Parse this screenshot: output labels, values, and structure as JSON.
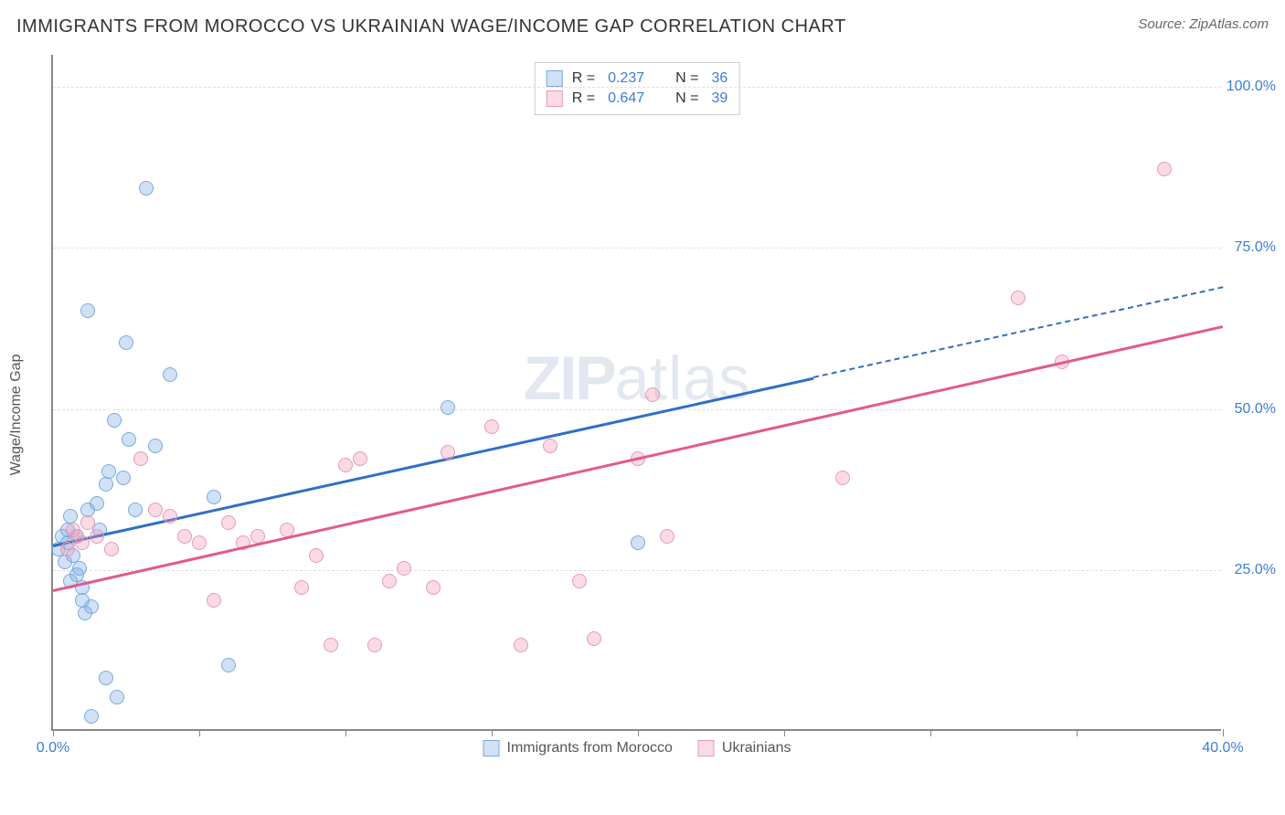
{
  "title": "IMMIGRANTS FROM MOROCCO VS UKRAINIAN WAGE/INCOME GAP CORRELATION CHART",
  "source_label": "Source: ",
  "source_value": "ZipAtlas.com",
  "y_axis_label": "Wage/Income Gap",
  "watermark_bold": "ZIP",
  "watermark_light": "atlas",
  "chart": {
    "type": "scatter",
    "background_color": "#ffffff",
    "grid_color": "#e0e0e0",
    "axis_color": "#888888",
    "tick_label_color": "#3b7dd8",
    "label_fontsize": 16,
    "title_fontsize": 20,
    "xlim": [
      0,
      40
    ],
    "ylim": [
      0,
      105
    ],
    "x_ticks": [
      0,
      10,
      20,
      30,
      40
    ],
    "x_tick_labels": [
      "0.0%",
      "",
      "",
      "",
      "40.0%"
    ],
    "x_tick_minor": [
      5,
      15,
      25,
      35
    ],
    "y_ticks": [
      25,
      50,
      75,
      100
    ],
    "y_tick_labels": [
      "25.0%",
      "50.0%",
      "75.0%",
      "100.0%"
    ],
    "marker_radius": 8,
    "marker_stroke_width": 1.5,
    "series": [
      {
        "key": "morocco",
        "label": "Immigrants from Morocco",
        "fill": "rgba(120,170,230,0.35)",
        "stroke": "#7aa9e0",
        "r_label": "R = ",
        "r_value": "0.237",
        "n_label": "N = ",
        "n_value": "36",
        "trend": {
          "x1": 0,
          "y1": 29,
          "x2": 26,
          "y2": 55,
          "color": "#2f6fc4",
          "width": 3,
          "dash": false
        },
        "trend_ext": {
          "x1": 26,
          "y1": 55,
          "x2": 40,
          "y2": 69,
          "color": "#2f6fc4",
          "width": 2,
          "dash": true
        },
        "points": [
          [
            0.2,
            28
          ],
          [
            0.3,
            30
          ],
          [
            0.4,
            26
          ],
          [
            0.5,
            29
          ],
          [
            0.5,
            31
          ],
          [
            0.6,
            23
          ],
          [
            0.6,
            33
          ],
          [
            0.7,
            27
          ],
          [
            0.8,
            30
          ],
          [
            0.8,
            24
          ],
          [
            0.9,
            25
          ],
          [
            1.0,
            20
          ],
          [
            1.0,
            22
          ],
          [
            1.1,
            18
          ],
          [
            1.2,
            65
          ],
          [
            1.2,
            34
          ],
          [
            1.3,
            19
          ],
          [
            1.5,
            35
          ],
          [
            1.6,
            31
          ],
          [
            1.8,
            38
          ],
          [
            1.9,
            40
          ],
          [
            2.1,
            48
          ],
          [
            2.4,
            39
          ],
          [
            2.5,
            60
          ],
          [
            2.6,
            45
          ],
          [
            2.8,
            34
          ],
          [
            3.2,
            84
          ],
          [
            3.5,
            44
          ],
          [
            4.0,
            55
          ],
          [
            5.5,
            36
          ],
          [
            6.0,
            10
          ],
          [
            1.8,
            8
          ],
          [
            2.2,
            5
          ],
          [
            1.3,
            2
          ],
          [
            13.5,
            50
          ],
          [
            20.0,
            29
          ]
        ]
      },
      {
        "key": "ukrainians",
        "label": "Ukrainians",
        "fill": "rgba(240,150,180,0.35)",
        "stroke": "#e89ab5",
        "r_label": "R = ",
        "r_value": "0.647",
        "n_label": "N = ",
        "n_value": "39",
        "trend": {
          "x1": 0,
          "y1": 22,
          "x2": 40,
          "y2": 63,
          "color": "#e35a87",
          "width": 3,
          "dash": false
        },
        "points": [
          [
            0.5,
            28
          ],
          [
            0.7,
            31
          ],
          [
            0.8,
            30
          ],
          [
            1.0,
            29
          ],
          [
            1.2,
            32
          ],
          [
            1.5,
            30
          ],
          [
            2.0,
            28
          ],
          [
            3.0,
            42
          ],
          [
            3.5,
            34
          ],
          [
            4.0,
            33
          ],
          [
            4.5,
            30
          ],
          [
            5.0,
            29
          ],
          [
            5.5,
            20
          ],
          [
            6.0,
            32
          ],
          [
            6.5,
            29
          ],
          [
            7.0,
            30
          ],
          [
            8.0,
            31
          ],
          [
            8.5,
            22
          ],
          [
            9.0,
            27
          ],
          [
            9.5,
            13
          ],
          [
            10.0,
            41
          ],
          [
            10.5,
            42
          ],
          [
            11.0,
            13
          ],
          [
            11.5,
            23
          ],
          [
            12.0,
            25
          ],
          [
            13.0,
            22
          ],
          [
            13.5,
            43
          ],
          [
            15.0,
            47
          ],
          [
            16.0,
            13
          ],
          [
            17.0,
            44
          ],
          [
            18.0,
            23
          ],
          [
            18.5,
            14
          ],
          [
            20.0,
            42
          ],
          [
            20.5,
            52
          ],
          [
            27.0,
            39
          ],
          [
            33.0,
            67
          ],
          [
            34.5,
            57
          ],
          [
            38.0,
            87
          ],
          [
            21.0,
            30
          ]
        ]
      }
    ]
  },
  "legend_top": {
    "border_color": "#cccccc"
  },
  "legend_bottom_items": [
    "morocco",
    "ukrainians"
  ]
}
